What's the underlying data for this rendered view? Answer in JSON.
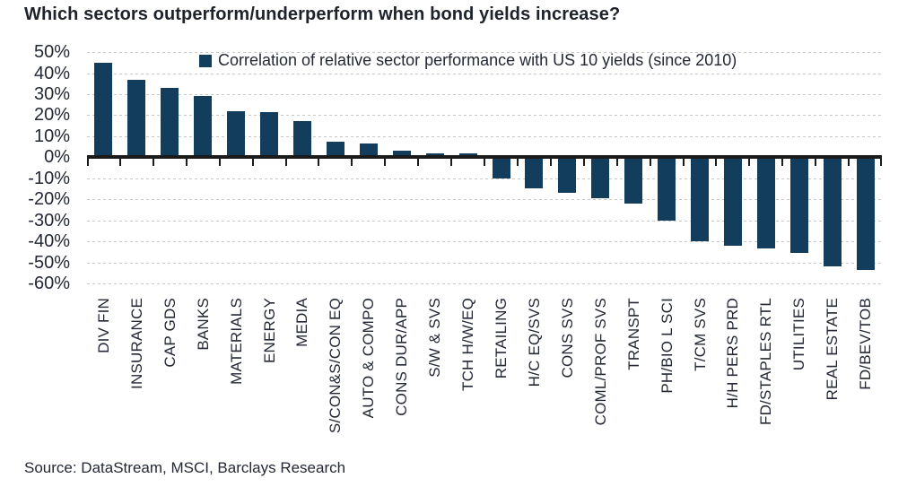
{
  "title": "Which sectors outperform/underperform when bond yields increase?",
  "source": "Source: DataStream, MSCI, Barclays Research",
  "colors": {
    "bar": "#123d5c",
    "text": "#232834",
    "title_text": "#1e222b",
    "grid": "#c7c7c7",
    "axis": "#1b1b1b",
    "background": "#ffffff"
  },
  "chart_data": {
    "type": "bar",
    "title": "Which sectors outperform/underperform when bond yields increase?",
    "legend": [
      "Correlation of relative sector performance with US 10 yields (since 2010)"
    ],
    "legend_position": "top-center-inside",
    "categories": [
      "DIV FIN",
      "INSURANCE",
      "CAP GDS",
      "BANKS",
      "MATERIALS",
      "ENERGY",
      "MEDIA",
      "S/CON&S/CON EQ",
      "AUTO & COMPO",
      "CONS DUR/APP",
      "S/W & SVS",
      "TCH H/W/EQ",
      "RETAILING",
      "H/C EQ/SVS",
      "CONS SVS",
      "COML/PROF SVS",
      "TRANSPT",
      "PH/BIO L SCI",
      "T/CM SVS",
      "H/H PERS PRD",
      "FD/STAPLES RTL",
      "UTILITIES",
      "REAL ESTATE",
      "FD/BEV/TOB"
    ],
    "values": [
      45,
      37,
      33,
      29,
      22,
      21.5,
      17,
      7.5,
      6.5,
      3,
      2,
      2,
      -10,
      -15,
      -17,
      -19.5,
      -22,
      -30,
      -40,
      -42,
      -43.5,
      -45.5,
      -52,
      -53.5
    ],
    "xlabel": "",
    "ylabel": "",
    "ylim": [
      -60,
      50
    ],
    "ytick_step": 10,
    "ytick_suffix": "%",
    "grid": "horizontal-dashed",
    "bar_color": "#123d5c"
  }
}
